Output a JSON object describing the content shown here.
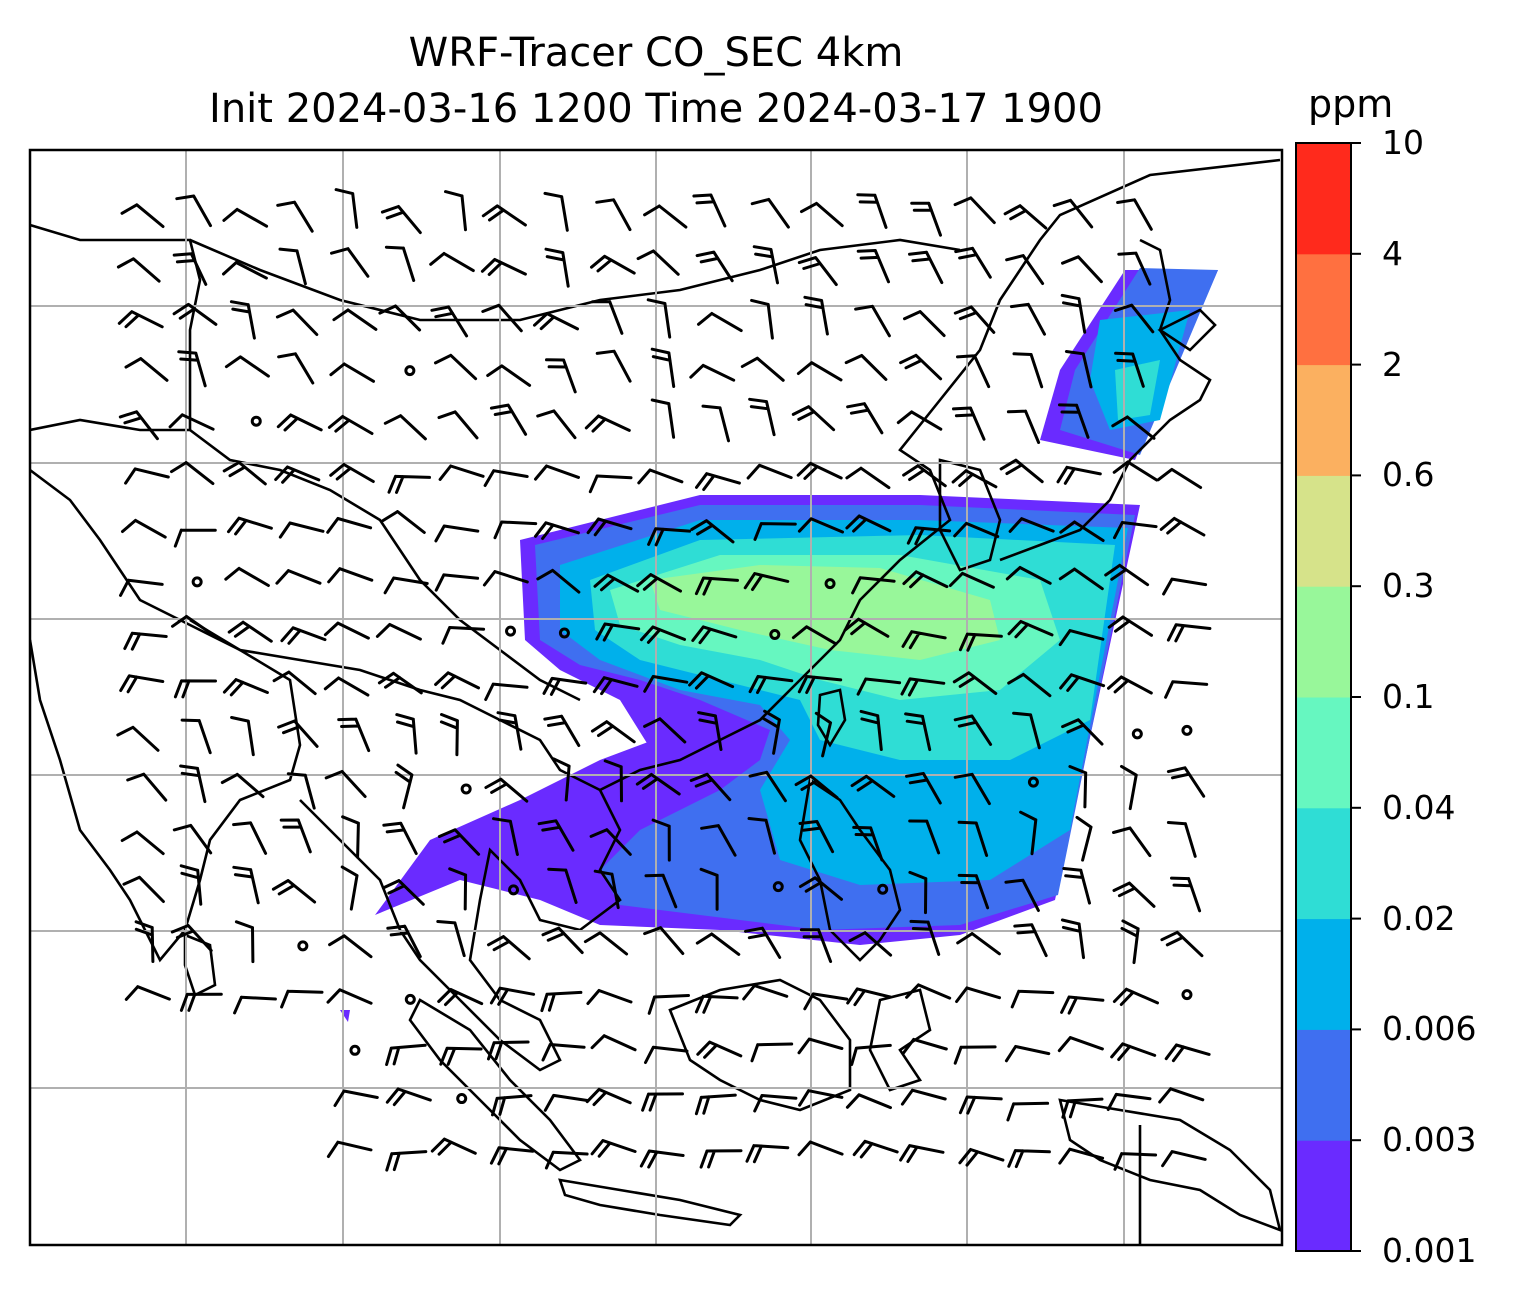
{
  "title": {
    "line1": "WRF-Tracer CO_SEC 4km",
    "line2": "Init 2024-03-16 1200 Time 2024-03-17 1900"
  },
  "colorbar": {
    "unit": "ppm",
    "ticks": [
      "0.001",
      "0.003",
      "0.006",
      "0.02",
      "0.04",
      "0.1",
      "0.3",
      "0.6",
      "2",
      "4",
      "10"
    ],
    "colors": [
      "#6a2bff",
      "#3f6ff0",
      "#00b0eb",
      "#2fddd5",
      "#66f7c0",
      "#98f79a",
      "#d6e38a",
      "#fbb060",
      "#ff7040",
      "#ff2a1c"
    ]
  },
  "map": {
    "grid": true,
    "grid_color": "#b0b0b0",
    "coastline_color": "#000000",
    "variable": "CO_SEC tracer concentration",
    "overlay": "wind barbs"
  }
}
